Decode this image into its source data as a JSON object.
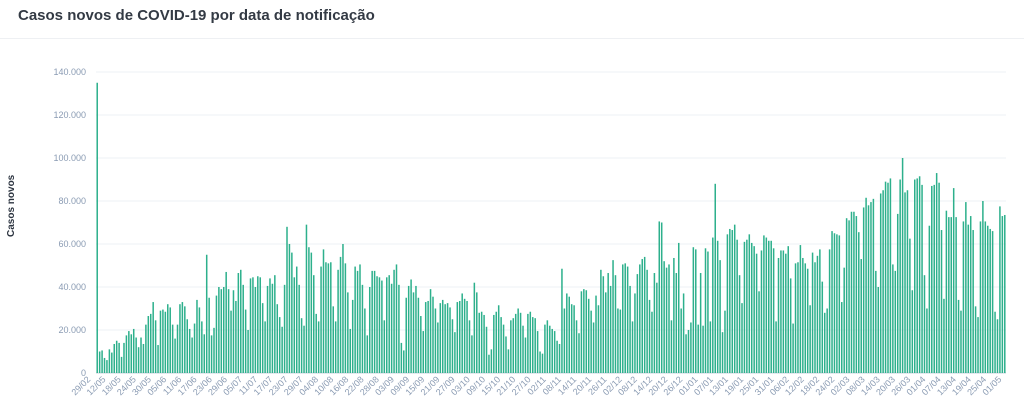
{
  "chart_data": {
    "type": "bar",
    "title": "Casos novos de COVID-19 por data de notificação",
    "ylabel": "Casos novos",
    "xlabel": "",
    "ylim": [
      0,
      140000
    ],
    "y_ticks": [
      "0",
      "20.000",
      "40.000",
      "60.000",
      "80.000",
      "100.000",
      "120.000",
      "140.000"
    ],
    "x_ticks": [
      "29/02",
      "12/05",
      "18/05",
      "24/05",
      "30/05",
      "05/06",
      "11/06",
      "17/06",
      "23/06",
      "29/06",
      "05/07",
      "11/07",
      "17/07",
      "23/07",
      "29/07",
      "04/08",
      "10/08",
      "16/08",
      "22/08",
      "28/08",
      "03/09",
      "09/09",
      "15/09",
      "21/09",
      "27/09",
      "03/10",
      "09/10",
      "15/10",
      "21/10",
      "27/10",
      "02/11",
      "08/11",
      "14/11",
      "20/11",
      "26/11",
      "02/12",
      "08/12",
      "14/12",
      "20/12",
      "26/12",
      "01/01",
      "07/01",
      "13/01",
      "19/01",
      "25/01",
      "31/01",
      "06/02",
      "12/02",
      "18/02",
      "24/02",
      "02/03",
      "08/03",
      "14/03",
      "20/03",
      "26/03",
      "01/04",
      "07/04",
      "13/04",
      "19/04",
      "25/04",
      "01/05"
    ],
    "bar_color": "#2db08c",
    "grid": "horizontal",
    "values": [
      135000,
      10000,
      10500,
      7000,
      6000,
      11000,
      9500,
      13500,
      15000,
      14000,
      7500,
      14000,
      17500,
      19500,
      18000,
      20500,
      16500,
      12000,
      16500,
      13500,
      22500,
      26500,
      27500,
      33000,
      24500,
      13000,
      29000,
      29500,
      28500,
      32000,
      30500,
      22500,
      16000,
      22500,
      32000,
      33000,
      31000,
      25000,
      20500,
      16500,
      23000,
      34000,
      30500,
      24000,
      18000,
      55000,
      35000,
      17500,
      21000,
      36000,
      40000,
      39000,
      40000,
      47000,
      39000,
      29000,
      38500,
      33500,
      46500,
      48000,
      41000,
      29500,
      20000,
      44000,
      44500,
      40000,
      45000,
      44500,
      32500,
      24000,
      40500,
      44000,
      41500,
      45500,
      32000,
      26000,
      21500,
      41000,
      68000,
      60000,
      56000,
      44500,
      49500,
      41000,
      25500,
      22000,
      69000,
      58500,
      56000,
      45500,
      27500,
      24000,
      49500,
      57500,
      51500,
      51000,
      51500,
      31000,
      24000,
      48000,
      54000,
      60000,
      51000,
      37500,
      20500,
      34000,
      49500,
      47500,
      50500,
      41000,
      30000,
      17500,
      40000,
      47500,
      47500,
      45000,
      44500,
      43000,
      24500,
      44500,
      45500,
      41500,
      48000,
      50500,
      41000,
      14000,
      10500,
      35000,
      40500,
      43500,
      37500,
      40500,
      35000,
      26500,
      19500,
      33000,
      33500,
      39000,
      35500,
      30000,
      23500,
      32500,
      34000,
      32000,
      32500,
      30500,
      25000,
      19000,
      33000,
      33500,
      37000,
      34500,
      33500,
      24500,
      17500,
      42000,
      37500,
      28000,
      28500,
      27000,
      21500,
      8500,
      11000,
      27000,
      28500,
      31500,
      26000,
      22500,
      17000,
      11000,
      24500,
      25500,
      27500,
      30000,
      28000,
      22000,
      16500,
      27500,
      28500,
      26000,
      25500,
      19500,
      10000,
      9000,
      22500,
      24500,
      22000,
      20500,
      19500,
      15000,
      13500,
      48500,
      30000,
      37000,
      35500,
      32000,
      31500,
      24500,
      18500,
      38000,
      39000,
      38500,
      34500,
      29000,
      23500,
      36000,
      31500,
      48000,
      45000,
      37500,
      46500,
      40500,
      52500,
      45500,
      30000,
      29500,
      50500,
      51000,
      49500,
      40500,
      24000,
      37000,
      46000,
      50500,
      53000,
      54000,
      48000,
      34000,
      28500,
      46500,
      42000,
      70500,
      70000,
      52000,
      49000,
      50500,
      24500,
      53500,
      46500,
      60500,
      30000,
      37000,
      18000,
      20000,
      23500,
      58500,
      57500,
      22500,
      46500,
      22000,
      58000,
      56500,
      24000,
      63000,
      88000,
      61500,
      52500,
      19000,
      29000,
      64500,
      67000,
      66500,
      69000,
      62000,
      45500,
      32500,
      61000,
      62000,
      64500,
      60500,
      59000,
      55500,
      38000,
      57000,
      64000,
      63000,
      61500,
      61500,
      58000,
      24000,
      53500,
      57000,
      57000,
      55500,
      59000,
      44000,
      23000,
      51000,
      51500,
      59500,
      53500,
      51000,
      48500,
      31500,
      56000,
      51500,
      54500,
      57500,
      42500,
      28000,
      30000,
      57500,
      66000,
      65000,
      64500,
      64000,
      33000,
      49000,
      72000,
      71000,
      75000,
      75000,
      73000,
      65500,
      53000,
      77000,
      81500,
      78000,
      79500,
      81000,
      47500,
      40000,
      83500,
      85000,
      89000,
      88500,
      90500,
      50500,
      47500,
      74000,
      90000,
      100000,
      84000,
      85000,
      62500,
      38500,
      90000,
      90500,
      91500,
      87500,
      45500,
      30000,
      68500,
      87000,
      87500,
      93000,
      88500,
      66500,
      34500,
      75500,
      72500,
      72500,
      86000,
      72500,
      34000,
      29000,
      70500,
      79500,
      69000,
      73000,
      66500,
      31000,
      26000,
      70500,
      80000,
      70500,
      68500,
      67000,
      66000,
      28500,
      25000,
      77500,
      73000,
      73500
    ]
  }
}
